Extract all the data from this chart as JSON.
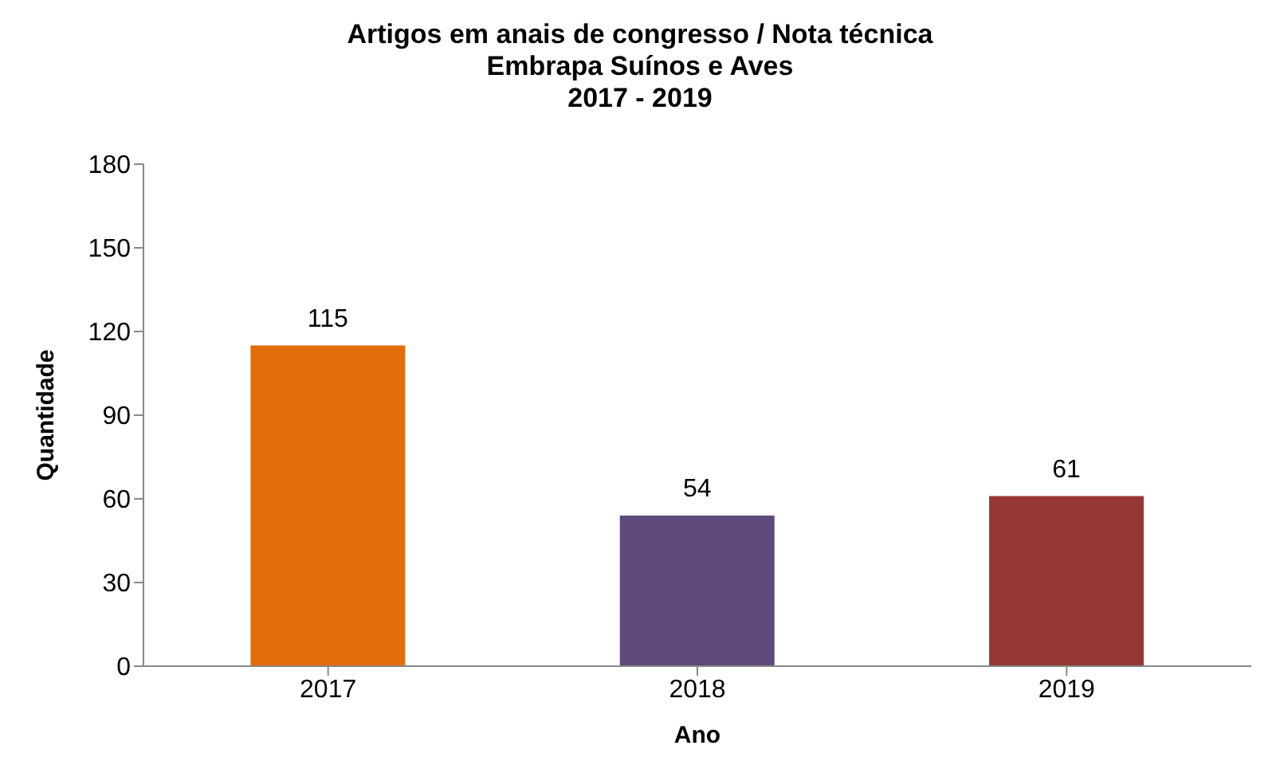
{
  "chart_data": {
    "type": "bar",
    "title": "Artigos em anais de congresso / Nota técnica\nEmbrapa Suínos e Aves\n2017 - 2019",
    "xlabel": "Ano",
    "ylabel": "Quantidade",
    "categories": [
      "2017",
      "2018",
      "2019"
    ],
    "values": [
      115,
      54,
      61
    ],
    "colors": [
      "#e36c0a",
      "#604a7b",
      "#953735"
    ],
    "ylim": [
      0,
      180
    ],
    "yticks": [
      0,
      30,
      60,
      90,
      120,
      150,
      180
    ],
    "data_labels": true
  }
}
